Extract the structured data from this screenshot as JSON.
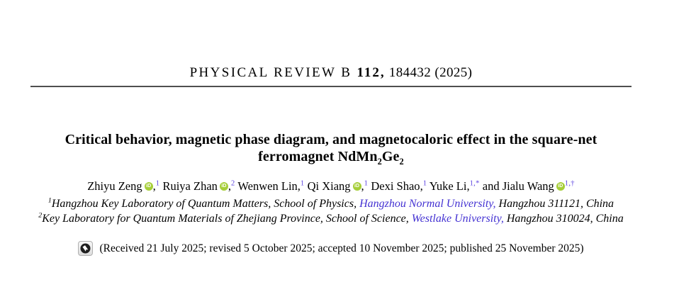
{
  "journal_header": {
    "name": "PHYSICAL REVIEW B ",
    "volume": "112,",
    "rest": " 184432 (2025)"
  },
  "article": {
    "title_line1": "Critical behavior, magnetic phase diagram, and magnetocaloric effect in the square-net",
    "title_line2_segments": [
      {
        "text": "ferromagnet NdMn"
      },
      {
        "sub": "2"
      },
      {
        "text": "Ge"
      },
      {
        "sub": "2"
      }
    ]
  },
  "authors": {
    "items": [
      {
        "prefix": "",
        "name": "Zhiyu Zeng",
        "orcid": true,
        "comma": ",",
        "sup": "1"
      },
      {
        "prefix": "",
        "name": "Ruiya Zhan",
        "orcid": true,
        "comma": ",",
        "sup": "2"
      },
      {
        "prefix": "",
        "name": "Wenwen Lin",
        "orcid": false,
        "comma": ",",
        "sup": "1"
      },
      {
        "prefix": "",
        "name": "Qi Xiang",
        "orcid": true,
        "comma": ",",
        "sup": "1"
      },
      {
        "prefix": "",
        "name": "Dexi Shao",
        "orcid": false,
        "comma": ",",
        "sup": "1"
      },
      {
        "prefix": "",
        "name": "Yuke Li",
        "orcid": false,
        "comma": ",",
        "sup": "1,*"
      },
      {
        "prefix": "and ",
        "name": "Jialu Wang",
        "orcid": true,
        "comma": "",
        "sup": "1,†"
      }
    ]
  },
  "affiliations": {
    "items": [
      {
        "sup": "1",
        "pre": "Hangzhou Key Laboratory of Quantum Matters, School of Physics, ",
        "link": "Hangzhou Normal University,",
        "post": " Hangzhou 311121, China"
      },
      {
        "sup": "2",
        "pre": "Key Laboratory for Quantum Materials of Zhejiang Province, School of Science, ",
        "link": "Westlake University,",
        "post": " Hangzhou 310024, China"
      }
    ]
  },
  "dates": {
    "line": "(Received 21 July 2025; revised 5 October 2025; accepted 10 November 2025; published 25 November 2025)"
  },
  "icons": {
    "orcid": "orcid-id-icon",
    "crossmark": "crossmark-check-for-updates-icon"
  },
  "colors": {
    "link": "#4331d2",
    "author_superscript": "#5a41e0",
    "orcid_green": "#a6ce39",
    "rule": "#4f4f4f"
  }
}
